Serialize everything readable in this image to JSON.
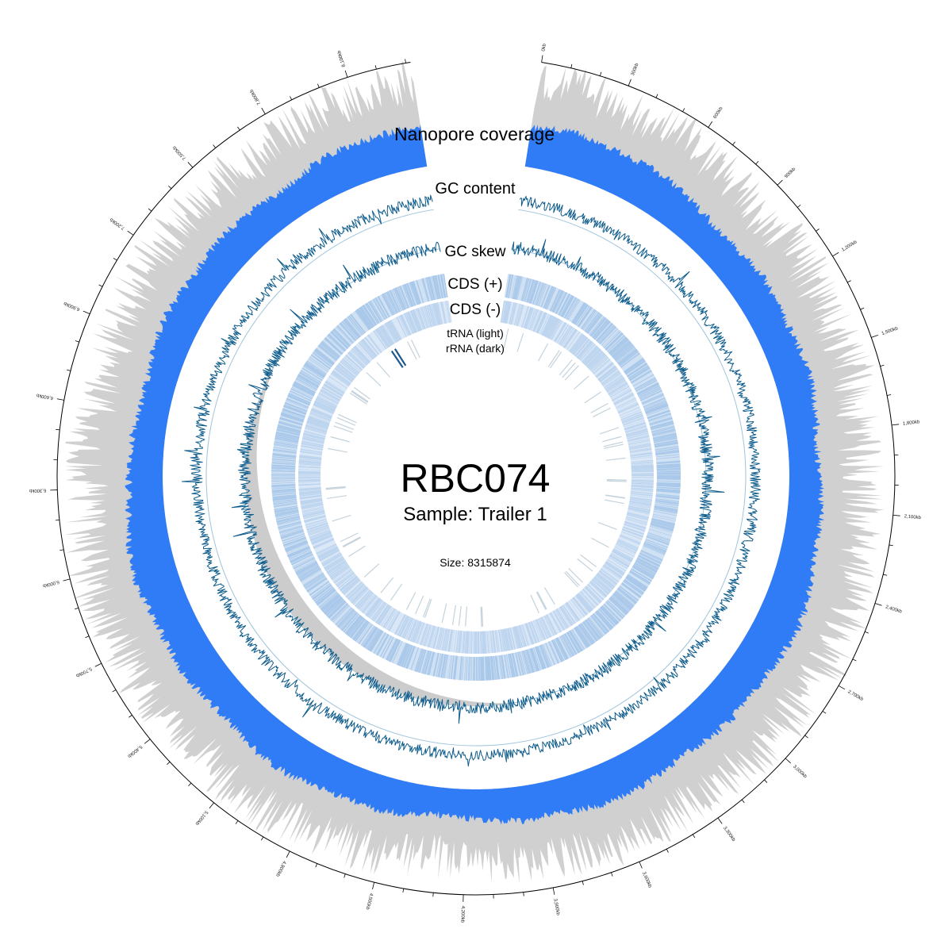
{
  "title": "RBC074",
  "subtitle": "Sample: Trailer 1",
  "size_label": "Size: 8315874",
  "genome_size_bp": 8315874,
  "track_labels": {
    "coverage": "Nanopore coverage",
    "gc_content": "GC content",
    "gc_skew": "GC skew",
    "cds_plus": "CDS (+)",
    "cds_minus": "CDS (-)",
    "trna": "tRNA (light)",
    "rrna": "rRNA (dark)"
  },
  "tick_labels": [
    "0kb",
    "300kb",
    "600kb",
    "900kb",
    "1,200kb",
    "1,500kb",
    "1,800kb",
    "2,100kb",
    "2,400kb",
    "2,700kb",
    "3,000kb",
    "3,300kb",
    "3,600kb",
    "3,900kb",
    "4,200kb",
    "4,500kb",
    "4,800kb",
    "5,100kb",
    "5,400kb",
    "5,700kb",
    "6,000kb",
    "6,300kb",
    "6,600kb",
    "6,900kb",
    "7,200kb",
    "7,500kb",
    "7,800kb",
    "8,100kb"
  ],
  "colors": {
    "coverage": "#2f7cf6",
    "coverage_bg": "#d0d0d0",
    "gc": "#0e5c8c",
    "gc_baseline": "#9fc4dc",
    "cds_plus": "#a9c8ea",
    "cds_minus": "#bcd4ee",
    "trna": "#c4d2dc",
    "rrna": "#1f5a8e",
    "skew_fill": "#cccccc"
  }
}
